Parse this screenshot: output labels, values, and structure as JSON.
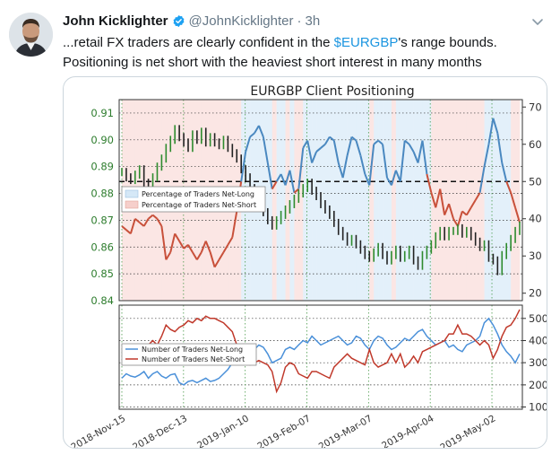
{
  "tweet": {
    "author_name": "John Kicklighter",
    "handle": "@JohnKicklighter",
    "separator": "·",
    "time": "3h",
    "text_lines": [
      "...retail FX traders are clearly confident in the ",
      "'s range bounds.",
      "Positioning is net short with the heaviest short interest in many months"
    ],
    "cashtag": "$EURGBP",
    "icons": {
      "avatar": "avatar-photo",
      "verified": "verified-badge-icon",
      "more": "chevron-down-icon"
    },
    "colors": {
      "link": "#1b95e0",
      "verified": "#1da1f2",
      "muted": "#657786"
    }
  },
  "chart_data": [
    {
      "type": "line",
      "title": "EURGBP Client Positioning",
      "y_left_ticks": [
        "0.91",
        "0.90",
        "0.89",
        "0.88",
        "0.87",
        "0.86",
        "0.85",
        "0.84"
      ],
      "y_left_range": [
        0.84,
        0.915
      ],
      "y_right_ticks": [
        "70",
        "60",
        "50",
        "40",
        "30",
        "20"
      ],
      "y_right_range": [
        18,
        72
      ],
      "reference_line": 50,
      "legend": [
        "Percentage of Traders Net-Long",
        "Percentage of Traders Net-Short"
      ],
      "legend_position": "left",
      "price_close": [
        0.888,
        0.886,
        0.885,
        0.887,
        0.889,
        0.884,
        0.882,
        0.886,
        0.89,
        0.893,
        0.897,
        0.9,
        0.904,
        0.901,
        0.899,
        0.897,
        0.902,
        0.9,
        0.903,
        0.899,
        0.901,
        0.899,
        0.898,
        0.9,
        0.897,
        0.895,
        0.893,
        0.889,
        0.886,
        0.882,
        0.879,
        0.876,
        0.873,
        0.87,
        0.868,
        0.87,
        0.872,
        0.874,
        0.876,
        0.878,
        0.88,
        0.882,
        0.884,
        0.881,
        0.879,
        0.876,
        0.874,
        0.872,
        0.869,
        0.866,
        0.864,
        0.862,
        0.863,
        0.861,
        0.859,
        0.857,
        0.856,
        0.858,
        0.86,
        0.857,
        0.855,
        0.857,
        0.859,
        0.856,
        0.857,
        0.859,
        0.855,
        0.853,
        0.857,
        0.859,
        0.861,
        0.864,
        0.866,
        0.864,
        0.866,
        0.866,
        0.867,
        0.865,
        0.866,
        0.864,
        0.862,
        0.86,
        0.861,
        0.856,
        0.855,
        0.851,
        0.857,
        0.86,
        0.863,
        0.866,
        0.868
      ],
      "percent_long": [
        38,
        37,
        36,
        40,
        39,
        38,
        40,
        41,
        40,
        38,
        29,
        31,
        36,
        34,
        32,
        33,
        31,
        29,
        31,
        34,
        31,
        27,
        29,
        31,
        33,
        35,
        42,
        50,
        58,
        62,
        63,
        65,
        62,
        55,
        48,
        50,
        52,
        49,
        53,
        47,
        48,
        59,
        61,
        55,
        58,
        59,
        60,
        62,
        61,
        55,
        51,
        57,
        62,
        61,
        57,
        52,
        49,
        60,
        61,
        60,
        51,
        49,
        53,
        50,
        61,
        60,
        58,
        55,
        61,
        52,
        47,
        43,
        48,
        41,
        44,
        40,
        38,
        42,
        41,
        43,
        45,
        47,
        54,
        60,
        67,
        63,
        55,
        50,
        47,
        43,
        39
      ],
      "ylim": [
        0.84,
        0.915
      ]
    },
    {
      "type": "line",
      "y_right_ticks": [
        "500",
        "400",
        "300",
        "200",
        "100"
      ],
      "y_right_range": [
        90,
        560
      ],
      "legend": [
        "Number of Traders Net-Long",
        "Number of Traders Net-Short"
      ],
      "legend_position": "left",
      "x_tick_labels": [
        "2018-Nov-15",
        "2018-Dec-13",
        "2019-Jan-10",
        "2019-Feb-07",
        "2019-Mar-07",
        "2019-Apr-04",
        "2019-May-02"
      ],
      "net_long": [
        230,
        250,
        240,
        235,
        245,
        260,
        230,
        250,
        260,
        240,
        230,
        245,
        250,
        210,
        200,
        215,
        220,
        210,
        220,
        230,
        215,
        220,
        230,
        250,
        270,
        300,
        340,
        360,
        380,
        370,
        360,
        380,
        370,
        340,
        300,
        310,
        320,
        360,
        370,
        360,
        380,
        400,
        390,
        420,
        400,
        380,
        390,
        400,
        410,
        420,
        400,
        380,
        390,
        420,
        410,
        380,
        360,
        400,
        420,
        410,
        380,
        360,
        370,
        390,
        410,
        400,
        420,
        440,
        450,
        420,
        400,
        380,
        390,
        400,
        370,
        380,
        360,
        350,
        380,
        390,
        400,
        420,
        480,
        500,
        470,
        430,
        380,
        350,
        330,
        300,
        340
      ],
      "net_short": [
        360,
        370,
        380,
        370,
        360,
        350,
        380,
        400,
        380,
        420,
        470,
        450,
        440,
        460,
        470,
        490,
        480,
        500,
        490,
        510,
        500,
        500,
        490,
        480,
        460,
        440,
        380,
        360,
        320,
        290,
        300,
        310,
        300,
        290,
        260,
        170,
        210,
        280,
        300,
        290,
        250,
        240,
        230,
        260,
        260,
        250,
        240,
        230,
        280,
        300,
        320,
        340,
        320,
        310,
        300,
        290,
        360,
        300,
        280,
        290,
        300,
        340,
        300,
        340,
        280,
        300,
        330,
        300,
        350,
        360,
        370,
        380,
        390,
        400,
        430,
        430,
        470,
        430,
        430,
        420,
        400,
        380,
        400,
        380,
        320,
        360,
        420,
        460,
        470,
        500,
        540
      ],
      "ylim": [
        90,
        560
      ]
    }
  ]
}
